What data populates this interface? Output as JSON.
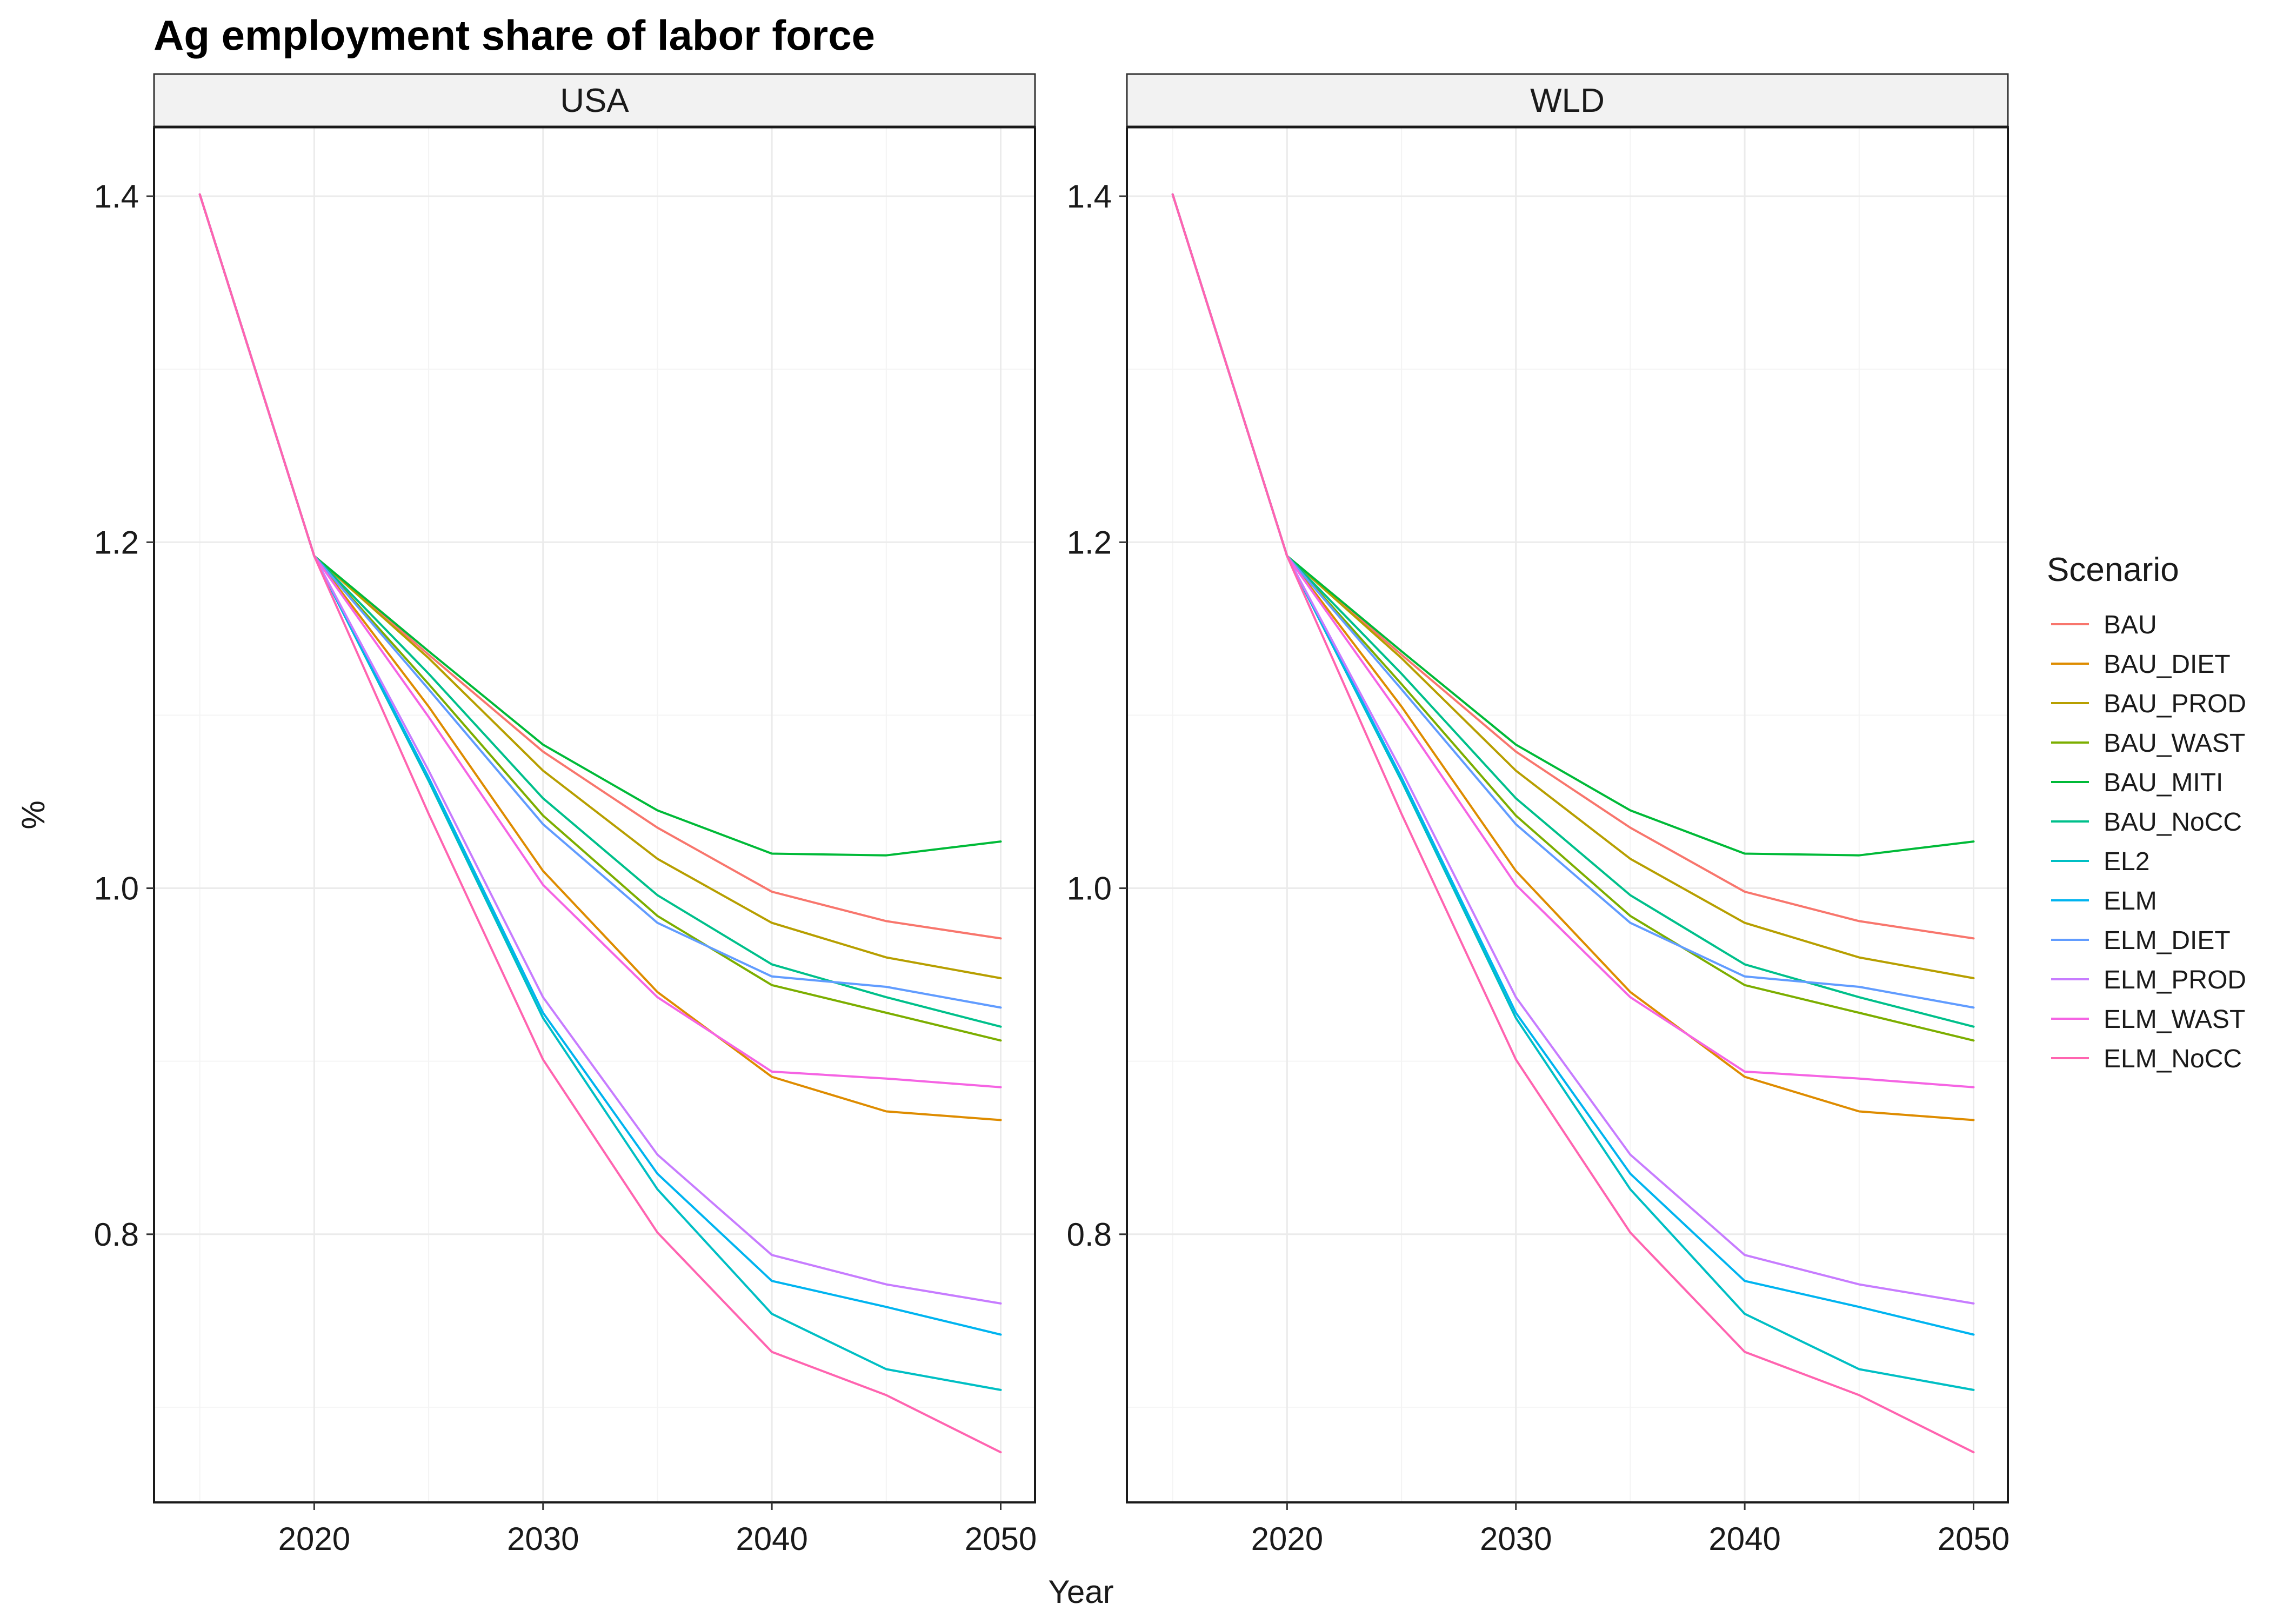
{
  "chart_data": {
    "type": "line",
    "title": "Ag employment share of labor force",
    "xlabel": "Year",
    "ylabel": "%",
    "xlim": [
      2013,
      2051.5
    ],
    "ylim": [
      0.645,
      1.44
    ],
    "x_ticks": [
      2020,
      2030,
      2040,
      2050
    ],
    "y_ticks": [
      0.8,
      1.0,
      1.2,
      1.4
    ],
    "y_tick_labels": [
      "0.8",
      "1.0",
      "1.2",
      "1.4"
    ],
    "grid": true,
    "legend_title": "Scenario",
    "legend_position": "right",
    "x": [
      2015,
      2020,
      2025,
      2030,
      2035,
      2040,
      2045,
      2050
    ],
    "panels": [
      {
        "name": "USA",
        "series": [
          {
            "name": "BAU",
            "color": "#F8766D",
            "values": [
              1.401,
              1.192,
              1.135,
              1.079,
              1.035,
              0.998,
              0.981,
              0.971
            ]
          },
          {
            "name": "BAU_DIET",
            "color": "#DE8C00",
            "values": [
              1.401,
              1.192,
              1.105,
              1.01,
              0.94,
              0.891,
              0.871,
              0.866
            ]
          },
          {
            "name": "BAU_PROD",
            "color": "#B79F00",
            "values": [
              1.401,
              1.192,
              1.133,
              1.068,
              1.017,
              0.98,
              0.96,
              0.948
            ]
          },
          {
            "name": "BAU_WAST",
            "color": "#7CAE00",
            "values": [
              1.401,
              1.192,
              1.118,
              1.042,
              0.984,
              0.944,
              0.928,
              0.912
            ]
          },
          {
            "name": "BAU_MITI",
            "color": "#00BA38",
            "values": [
              1.401,
              1.192,
              1.137,
              1.083,
              1.045,
              1.02,
              1.019,
              1.027
            ]
          },
          {
            "name": "BAU_NoCC",
            "color": "#00C08B",
            "values": [
              1.401,
              1.192,
              1.124,
              1.052,
              0.996,
              0.956,
              0.937,
              0.92
            ]
          },
          {
            "name": "EL2",
            "color": "#00BFC4",
            "values": [
              1.401,
              1.192,
              1.062,
              0.925,
              0.826,
              0.754,
              0.722,
              0.71
            ]
          },
          {
            "name": "ELM",
            "color": "#00B4F0",
            "values": [
              1.401,
              1.192,
              1.064,
              0.928,
              0.835,
              0.773,
              0.758,
              0.742
            ]
          },
          {
            "name": "ELM_DIET",
            "color": "#619CFF",
            "values": [
              1.401,
              1.192,
              1.115,
              1.037,
              0.98,
              0.949,
              0.943,
              0.931
            ]
          },
          {
            "name": "ELM_PROD",
            "color": "#C77CFF",
            "values": [
              1.401,
              1.192,
              1.068,
              0.937,
              0.846,
              0.788,
              0.771,
              0.76
            ]
          },
          {
            "name": "ELM_WAST",
            "color": "#F564E3",
            "values": [
              1.401,
              1.192,
              1.099,
              1.002,
              0.937,
              0.894,
              0.89,
              0.885
            ]
          },
          {
            "name": "ELM_NoCC",
            "color": "#FF64B0",
            "values": [
              1.401,
              1.192,
              1.043,
              0.901,
              0.801,
              0.732,
              0.707,
              0.674
            ]
          }
        ]
      },
      {
        "name": "WLD",
        "series": [
          {
            "name": "BAU",
            "color": "#F8766D",
            "values": [
              1.401,
              1.192,
              1.135,
              1.079,
              1.035,
              0.998,
              0.981,
              0.971
            ]
          },
          {
            "name": "BAU_DIET",
            "color": "#DE8C00",
            "values": [
              1.401,
              1.192,
              1.105,
              1.01,
              0.94,
              0.891,
              0.871,
              0.866
            ]
          },
          {
            "name": "BAU_PROD",
            "color": "#B79F00",
            "values": [
              1.401,
              1.192,
              1.133,
              1.068,
              1.017,
              0.98,
              0.96,
              0.948
            ]
          },
          {
            "name": "BAU_WAST",
            "color": "#7CAE00",
            "values": [
              1.401,
              1.192,
              1.118,
              1.042,
              0.984,
              0.944,
              0.928,
              0.912
            ]
          },
          {
            "name": "BAU_MITI",
            "color": "#00BA38",
            "values": [
              1.401,
              1.192,
              1.137,
              1.083,
              1.045,
              1.02,
              1.019,
              1.027
            ]
          },
          {
            "name": "BAU_NoCC",
            "color": "#00C08B",
            "values": [
              1.401,
              1.192,
              1.124,
              1.052,
              0.996,
              0.956,
              0.937,
              0.92
            ]
          },
          {
            "name": "EL2",
            "color": "#00BFC4",
            "values": [
              1.401,
              1.192,
              1.062,
              0.925,
              0.826,
              0.754,
              0.722,
              0.71
            ]
          },
          {
            "name": "ELM",
            "color": "#00B4F0",
            "values": [
              1.401,
              1.192,
              1.064,
              0.928,
              0.835,
              0.773,
              0.758,
              0.742
            ]
          },
          {
            "name": "ELM_DIET",
            "color": "#619CFF",
            "values": [
              1.401,
              1.192,
              1.115,
              1.037,
              0.98,
              0.949,
              0.943,
              0.931
            ]
          },
          {
            "name": "ELM_PROD",
            "color": "#C77CFF",
            "values": [
              1.401,
              1.192,
              1.068,
              0.937,
              0.846,
              0.788,
              0.771,
              0.76
            ]
          },
          {
            "name": "ELM_WAST",
            "color": "#F564E3",
            "values": [
              1.401,
              1.192,
              1.099,
              1.002,
              0.937,
              0.894,
              0.89,
              0.885
            ]
          },
          {
            "name": "ELM_NoCC",
            "color": "#FF64B0",
            "values": [
              1.401,
              1.192,
              1.043,
              0.901,
              0.801,
              0.732,
              0.707,
              0.674
            ]
          }
        ]
      }
    ]
  }
}
